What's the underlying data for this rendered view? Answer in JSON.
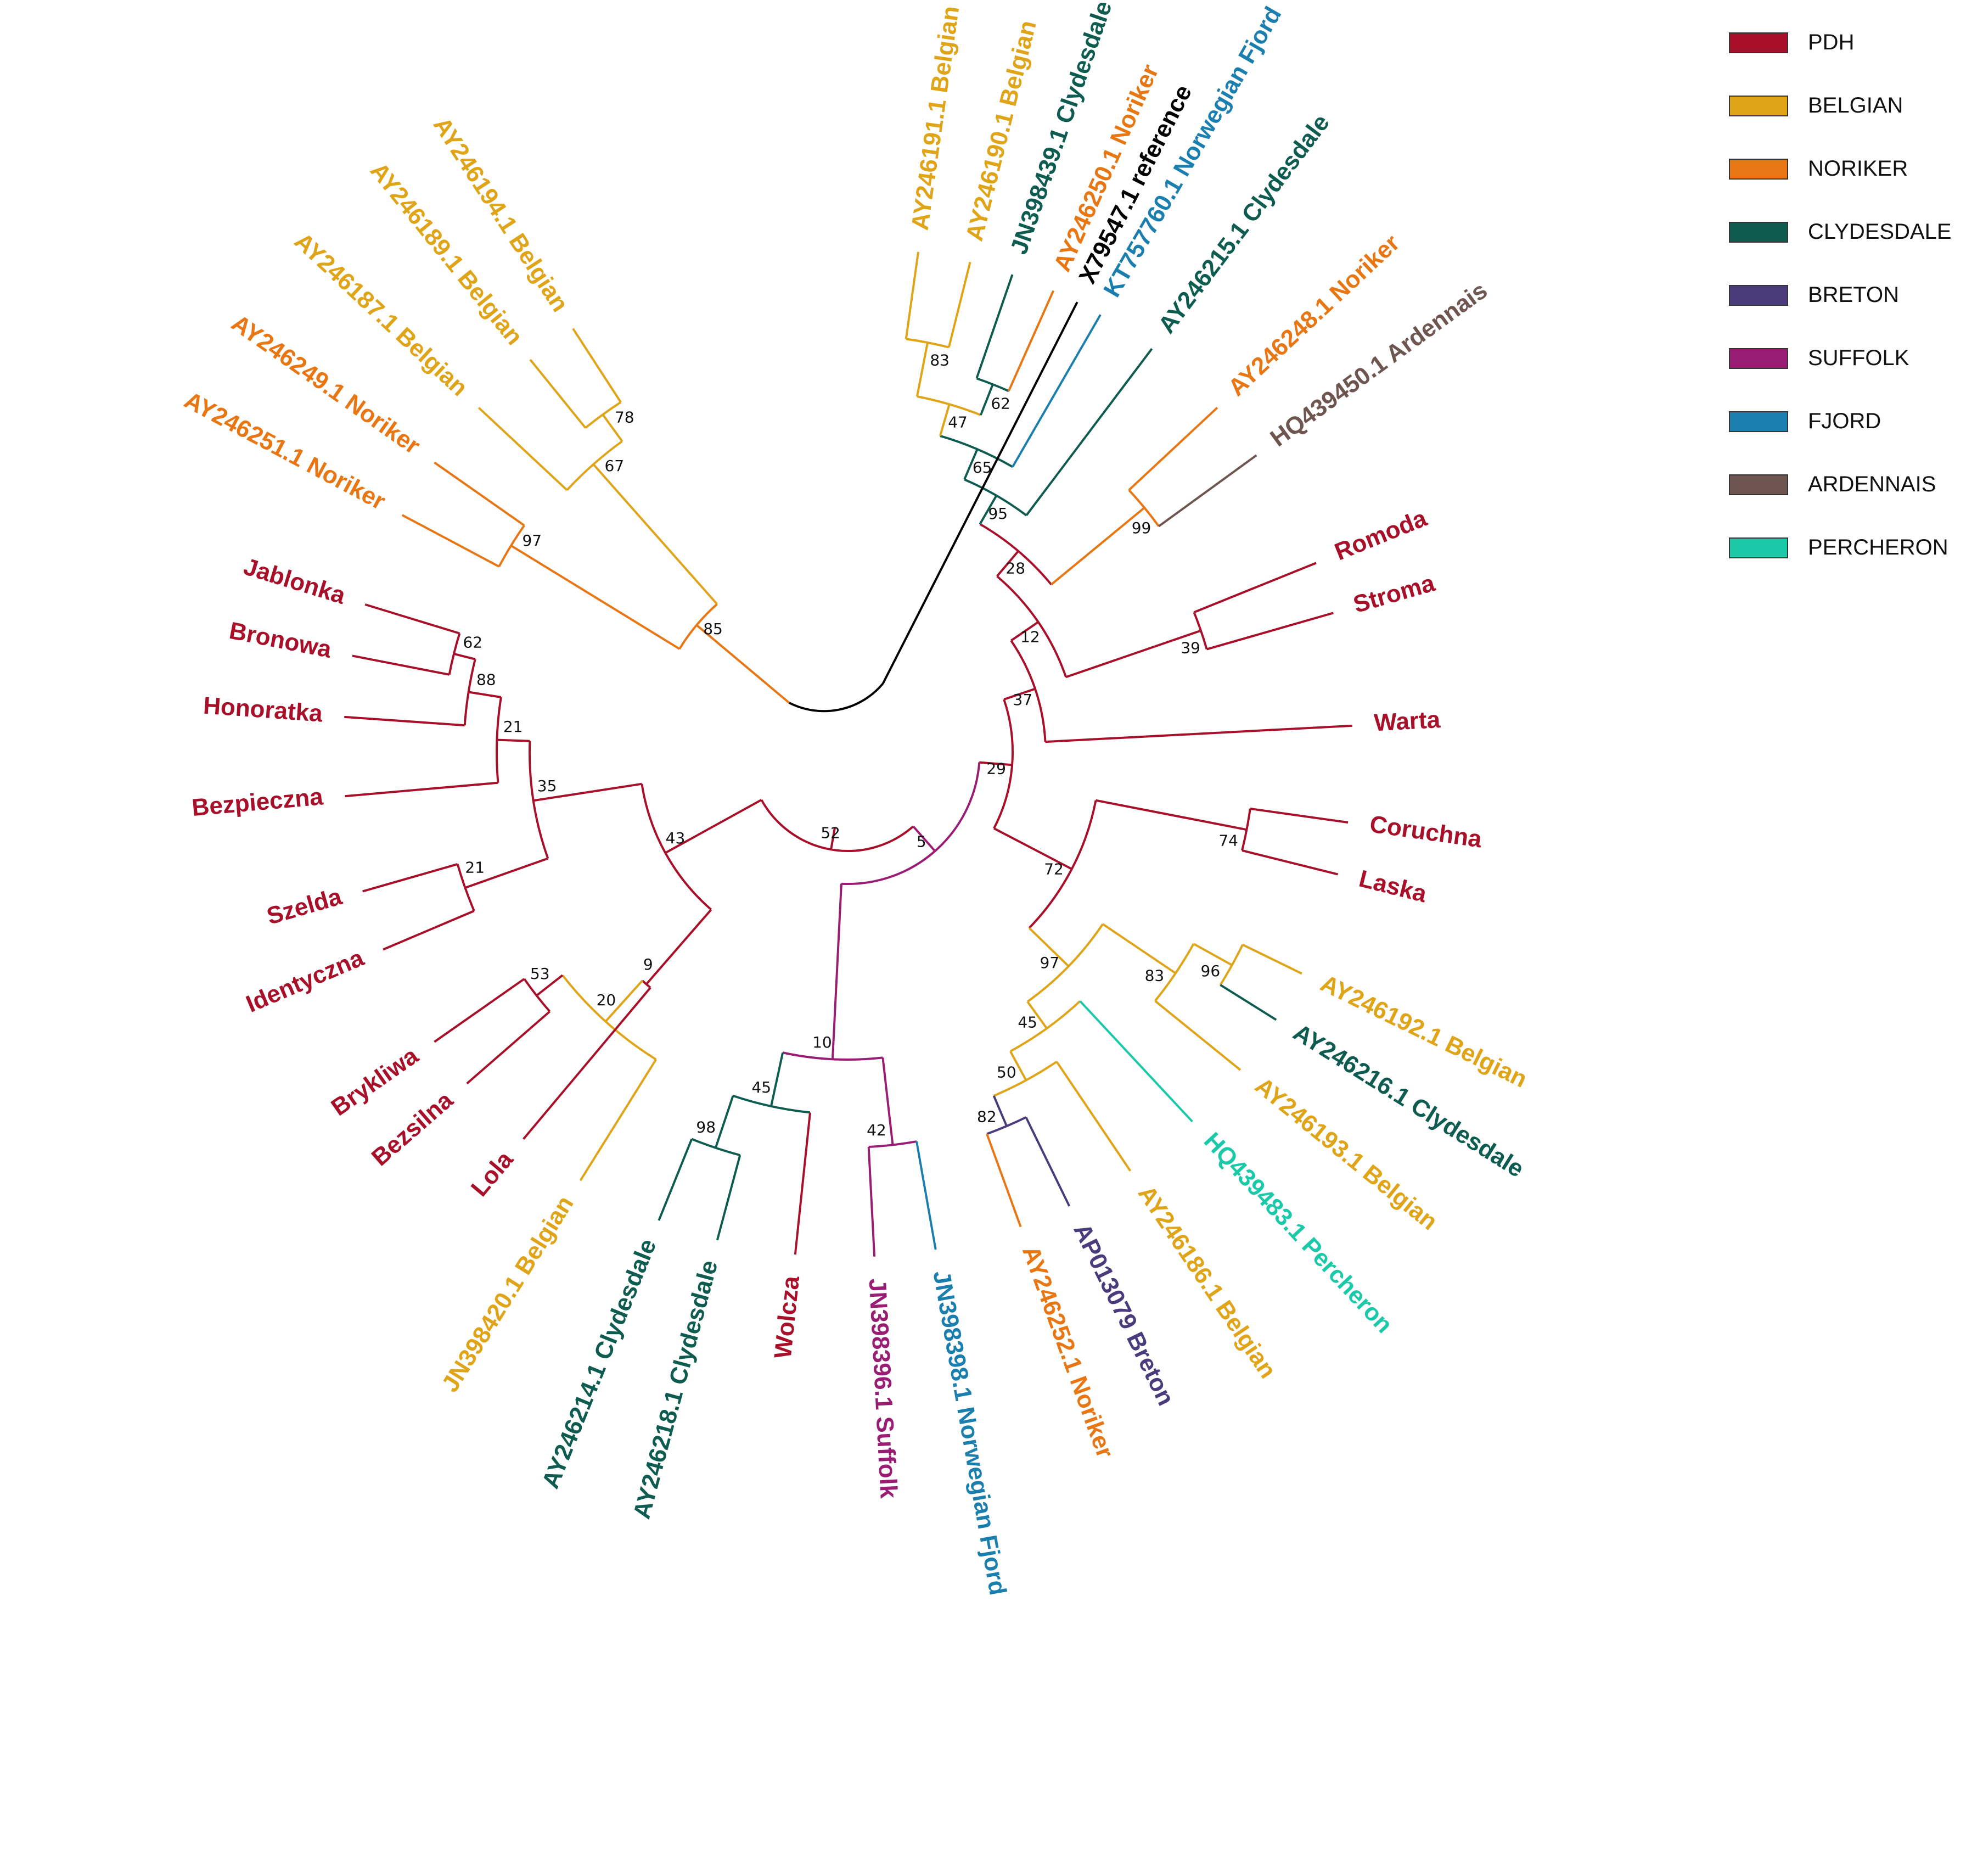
{
  "legend": [
    {
      "label": "PDH",
      "color": "#A8102A"
    },
    {
      "label": "BELGIAN",
      "color": "#E0A418"
    },
    {
      "label": "NORIKER",
      "color": "#E87613"
    },
    {
      "label": "CLYDESDALE",
      "color": "#0E5C50"
    },
    {
      "label": "BRETON",
      "color": "#4A3C7C"
    },
    {
      "label": "SUFFOLK",
      "color": "#9A1D74"
    },
    {
      "label": "FJORD",
      "color": "#1A7FAE"
    },
    {
      "label": "ARDENNAIS",
      "color": "#6E5550"
    },
    {
      "label": "PERCHERON",
      "color": "#19C9A8"
    }
  ],
  "tips": [
    {
      "id": "ref",
      "label": "X79547.1 reference",
      "group": "REFERENCE"
    },
    {
      "id": "b191",
      "label": "AY246191.1 Belgian",
      "group": "BELGIAN"
    },
    {
      "id": "b190",
      "label": "AY246190.1 Belgian",
      "group": "BELGIAN"
    },
    {
      "id": "c439",
      "label": "JN398439.1 Clydesdale",
      "group": "CLYDESDALE"
    },
    {
      "id": "n250",
      "label": "AY246250.1 Noriker",
      "group": "NORIKER"
    },
    {
      "id": "f760",
      "label": "KT757760.1 Norwegian Fjord",
      "group": "FJORD"
    },
    {
      "id": "c215",
      "label": "AY246215.1 Clydesdale",
      "group": "CLYDESDALE"
    },
    {
      "id": "n248",
      "label": "AY246248.1 Noriker",
      "group": "NORIKER"
    },
    {
      "id": "a450",
      "label": "HQ439450.1 Ardennais",
      "group": "ARDENNAIS"
    },
    {
      "id": "romoda",
      "label": "Romoda",
      "group": "PDH"
    },
    {
      "id": "stroma",
      "label": "Stroma",
      "group": "PDH"
    },
    {
      "id": "warta",
      "label": "Warta",
      "group": "PDH"
    },
    {
      "id": "coruchna",
      "label": "Coruchna",
      "group": "PDH"
    },
    {
      "id": "laska",
      "label": "Laska",
      "group": "PDH"
    },
    {
      "id": "b192",
      "label": "AY246192.1 Belgian",
      "group": "BELGIAN"
    },
    {
      "id": "c216",
      "label": "AY246216.1 Clydesdale",
      "group": "CLYDESDALE"
    },
    {
      "id": "b193",
      "label": "AY246193.1 Belgian",
      "group": "BELGIAN"
    },
    {
      "id": "p483",
      "label": "HQ439483.1 Percheron",
      "group": "PERCHERON"
    },
    {
      "id": "b186",
      "label": "AY246186.1 Belgian",
      "group": "BELGIAN"
    },
    {
      "id": "br079",
      "label": "AP013079 Breton",
      "group": "BRETON"
    },
    {
      "id": "n252",
      "label": "AY246252.1 Noriker",
      "group": "NORIKER"
    },
    {
      "id": "f398",
      "label": "JN398398.1 Norwegian Fjord",
      "group": "FJORD"
    },
    {
      "id": "s396",
      "label": "JN398396.1 Suffolk",
      "group": "SUFFOLK"
    },
    {
      "id": "wolcza",
      "label": "Wolcza",
      "group": "PDH"
    },
    {
      "id": "c218",
      "label": "AY246218.1 Clydesdale",
      "group": "CLYDESDALE"
    },
    {
      "id": "c214",
      "label": "AY246214.1 Clydesdale",
      "group": "CLYDESDALE"
    },
    {
      "id": "b420",
      "label": "JN398420.1 Belgian",
      "group": "BELGIAN"
    },
    {
      "id": "lola",
      "label": "Lola",
      "group": "PDH"
    },
    {
      "id": "bezsilna",
      "label": "Bezsilna",
      "group": "PDH"
    },
    {
      "id": "brykliwa",
      "label": "Brykliwa",
      "group": "PDH"
    },
    {
      "id": "identyczna",
      "label": "Identyczna",
      "group": "PDH"
    },
    {
      "id": "szelda",
      "label": "Szelda",
      "group": "PDH"
    },
    {
      "id": "bezpieczna",
      "label": "Bezpieczna",
      "group": "PDH"
    },
    {
      "id": "honoratka",
      "label": "Honoratka",
      "group": "PDH"
    },
    {
      "id": "bronowa",
      "label": "Bronowa",
      "group": "PDH"
    },
    {
      "id": "jablonka",
      "label": "Jablonka",
      "group": "PDH"
    },
    {
      "id": "n251",
      "label": "AY246251.1 Noriker",
      "group": "NORIKER"
    },
    {
      "id": "n249",
      "label": "AY246249.1 Noriker",
      "group": "NORIKER"
    },
    {
      "id": "b187",
      "label": "AY246187.1 Belgian",
      "group": "BELGIAN"
    },
    {
      "id": "b189",
      "label": "AY246189.1 Belgian",
      "group": "BELGIAN"
    },
    {
      "id": "b194",
      "label": "AY246194.1 Belgian",
      "group": "BELGIAN"
    }
  ],
  "clades": [
    {
      "support": "83",
      "children": [
        "b191",
        "b190"
      ],
      "group": "BELGIAN"
    },
    {
      "support": "62",
      "children": [
        "c439",
        "n250"
      ],
      "group": "CLYDESDALE"
    },
    {
      "support": "47",
      "children": [
        "83",
        "62"
      ],
      "group": "BELGIAN"
    },
    {
      "support": "65",
      "children": [
        "47",
        "f760"
      ],
      "group": "CLYDESDALE"
    },
    {
      "support": "95",
      "children": [
        "65",
        "c215"
      ],
      "group": "CLYDESDALE"
    },
    {
      "support": "99",
      "children": [
        "n248",
        "a450"
      ],
      "group": "NORIKER"
    },
    {
      "support": "28",
      "children": [
        "95",
        "99"
      ],
      "group": "PDH"
    },
    {
      "support": "39",
      "children": [
        "romoda",
        "stroma"
      ],
      "group": "PDH"
    },
    {
      "support": "12",
      "children": [
        "28",
        "39"
      ],
      "group": "PDH"
    },
    {
      "support": "37",
      "children": [
        "12",
        "warta"
      ],
      "group": "PDH"
    },
    {
      "support": "74",
      "children": [
        "coruchna",
        "laska"
      ],
      "group": "PDH"
    },
    {
      "support": "96",
      "children": [
        "b192",
        "c216"
      ],
      "group": "BELGIAN"
    },
    {
      "support": "83",
      "children": [
        "96",
        "b193"
      ],
      "group": "BELGIAN"
    },
    {
      "support": "82",
      "children": [
        "n252",
        "br079"
      ],
      "group": "BRETON"
    },
    {
      "support": "50",
      "children": [
        "82",
        "b186"
      ],
      "group": "BELGIAN"
    },
    {
      "support": "45",
      "children": [
        "50",
        "p483"
      ],
      "group": "BELGIAN"
    },
    {
      "support": "97",
      "children": [
        "83",
        "45"
      ],
      "group": "BELGIAN"
    },
    {
      "support": "72",
      "children": [
        "74",
        "97"
      ],
      "group": "PDH"
    },
    {
      "support": "29",
      "children": [
        "37",
        "72"
      ],
      "group": "PDH"
    },
    {
      "support": "42",
      "children": [
        "s396",
        "f398"
      ],
      "group": "SUFFOLK"
    },
    {
      "support": "98",
      "children": [
        "c214",
        "c218"
      ],
      "group": "CLYDESDALE"
    },
    {
      "support": "45",
      "children": [
        "98",
        "wolcza"
      ],
      "group": "CLYDESDALE"
    },
    {
      "support": "10",
      "children": [
        "45",
        "42"
      ],
      "group": "SUFFOLK"
    },
    {
      "support": "5",
      "children": [
        "10",
        "29"
      ],
      "group": "SUFFOLK"
    },
    {
      "support": "53",
      "children": [
        "brykliwa",
        "bezsilna"
      ],
      "group": "PDH"
    },
    {
      "support": "20",
      "children": [
        "53",
        "b420"
      ],
      "group": "BELGIAN"
    },
    {
      "support": "9",
      "children": [
        "20",
        "lola"
      ],
      "group": "PDH"
    },
    {
      "support": "62",
      "children": [
        "jablonka",
        "bronowa"
      ],
      "group": "PDH"
    },
    {
      "support": "88",
      "children": [
        "62",
        "honoratka"
      ],
      "group": "PDH"
    },
    {
      "support": "21",
      "children": [
        "88",
        "bezpieczna"
      ],
      "group": "PDH"
    },
    {
      "support": "21",
      "children": [
        "szelda",
        "identyczna"
      ],
      "group": "PDH"
    },
    {
      "support": "35",
      "children": [
        "21",
        "21"
      ],
      "group": "PDH"
    },
    {
      "support": "43",
      "children": [
        "35",
        "9"
      ],
      "group": "PDH"
    },
    {
      "support": "52",
      "children": [
        "43",
        "5"
      ],
      "group": "PDH"
    },
    {
      "support": "97",
      "children": [
        "n251",
        "n249"
      ],
      "group": "NORIKER"
    },
    {
      "support": "78",
      "children": [
        "b194",
        "b189"
      ],
      "group": "BELGIAN"
    },
    {
      "support": "67",
      "children": [
        "78",
        "b187"
      ],
      "group": "BELGIAN"
    },
    {
      "support": "85",
      "children": [
        "97",
        "67"
      ],
      "group": "NORIKER"
    }
  ]
}
